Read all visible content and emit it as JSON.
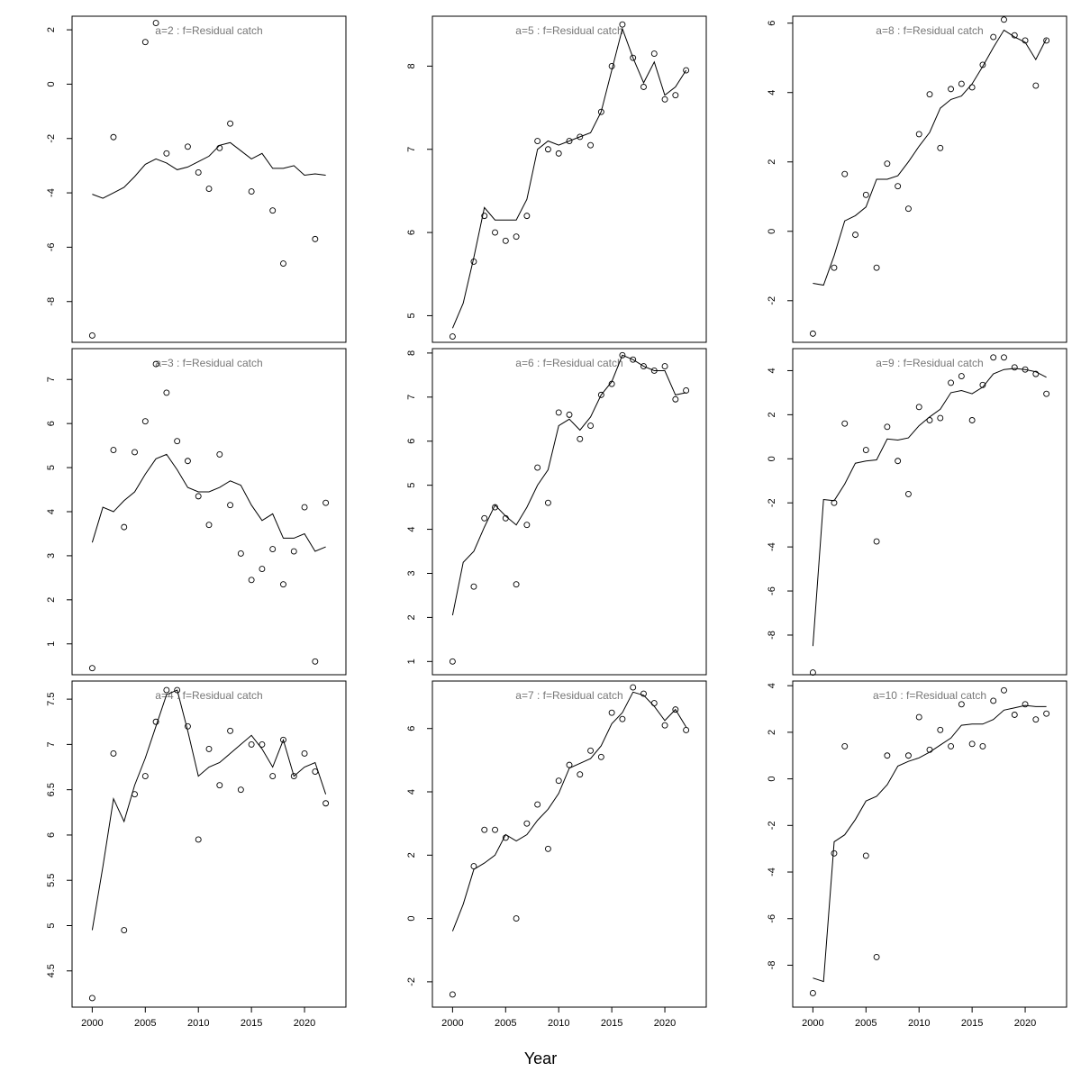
{
  "xlabel": "Year",
  "chart_data": [
    {
      "type": "line+scatter",
      "title": "a=2  :  f=Residual catch",
      "ylim": [
        -9.5,
        2.5
      ],
      "yticks": [
        -8,
        -6,
        -4,
        -2,
        0,
        2
      ],
      "xlim": [
        1998.1,
        2023.9
      ],
      "xticks": [],
      "years": [
        2000,
        2001,
        2002,
        2003,
        2004,
        2005,
        2006,
        2007,
        2008,
        2009,
        2010,
        2011,
        2012,
        2013,
        2014,
        2015,
        2016,
        2017,
        2018,
        2019,
        2020,
        2021,
        2022
      ],
      "observed": [
        -9.25,
        null,
        -1.95,
        null,
        null,
        1.55,
        2.25,
        -2.55,
        null,
        -2.3,
        -3.25,
        -3.85,
        -2.35,
        -1.45,
        null,
        -3.95,
        null,
        -4.65,
        -6.6,
        null,
        null,
        -5.7,
        null
      ],
      "fitted": [
        -4.05,
        -4.2,
        -4.0,
        -3.8,
        -3.4,
        -2.95,
        -2.75,
        -2.9,
        -3.15,
        -3.05,
        -2.85,
        -2.65,
        -2.25,
        -2.15,
        -2.45,
        -2.75,
        -2.55,
        -3.1,
        -3.1,
        -3.0,
        -3.35,
        -3.3,
        -3.35
      ]
    },
    {
      "type": "line+scatter",
      "title": "a=3  :  f=Residual catch",
      "ylim": [
        0.3,
        7.7
      ],
      "yticks": [
        1,
        2,
        3,
        4,
        5,
        6,
        7
      ],
      "xlim": [
        1998.1,
        2023.9
      ],
      "xticks": [],
      "years": [
        2000,
        2001,
        2002,
        2003,
        2004,
        2005,
        2006,
        2007,
        2008,
        2009,
        2010,
        2011,
        2012,
        2013,
        2014,
        2015,
        2016,
        2017,
        2018,
        2019,
        2020,
        2021,
        2022
      ],
      "observed": [
        0.45,
        null,
        5.4,
        3.65,
        5.35,
        6.05,
        7.35,
        6.7,
        5.6,
        5.15,
        4.35,
        3.7,
        5.3,
        4.15,
        3.05,
        2.45,
        2.7,
        3.15,
        2.35,
        3.1,
        4.1,
        0.6,
        4.2
      ],
      "fitted": [
        3.3,
        4.1,
        4.0,
        4.25,
        4.45,
        4.85,
        5.2,
        5.3,
        4.95,
        4.55,
        4.45,
        4.45,
        4.55,
        4.7,
        4.6,
        4.15,
        3.8,
        3.95,
        3.4,
        3.4,
        3.5,
        3.1,
        3.2
      ]
    },
    {
      "type": "line+scatter",
      "title": "a=4  :  f=Residual catch",
      "ylim": [
        4.1,
        7.7
      ],
      "yticks": [
        4.5,
        5.0,
        5.5,
        6.0,
        6.5,
        7.0,
        7.5
      ],
      "xlim": [
        1998.1,
        2023.9
      ],
      "xticks": [
        2000,
        2005,
        2010,
        2015,
        2020
      ],
      "years": [
        2000,
        2001,
        2002,
        2003,
        2004,
        2005,
        2006,
        2007,
        2008,
        2009,
        2010,
        2011,
        2012,
        2013,
        2014,
        2015,
        2016,
        2017,
        2018,
        2019,
        2020,
        2021,
        2022
      ],
      "observed": [
        4.2,
        null,
        6.9,
        4.95,
        6.45,
        6.65,
        7.25,
        7.6,
        7.6,
        7.2,
        5.95,
        6.95,
        6.55,
        7.15,
        6.5,
        7.0,
        7.0,
        6.65,
        7.05,
        6.65,
        6.9,
        6.7,
        6.35
      ],
      "fitted": [
        4.95,
        5.65,
        6.4,
        6.15,
        6.55,
        6.85,
        7.2,
        7.55,
        7.6,
        7.15,
        6.65,
        6.75,
        6.8,
        6.9,
        7.0,
        7.1,
        6.95,
        6.75,
        7.05,
        6.65,
        6.75,
        6.8,
        6.45
      ]
    },
    {
      "type": "line+scatter",
      "title": "a=5  :  f=Residual catch",
      "ylim": [
        4.68,
        8.6
      ],
      "yticks": [
        5,
        6,
        7,
        8
      ],
      "xlim": [
        1998.1,
        2023.9
      ],
      "xticks": [],
      "years": [
        2000,
        2001,
        2002,
        2003,
        2004,
        2005,
        2006,
        2007,
        2008,
        2009,
        2010,
        2011,
        2012,
        2013,
        2014,
        2015,
        2016,
        2017,
        2018,
        2019,
        2020,
        2021,
        2022
      ],
      "observed": [
        4.75,
        null,
        5.65,
        6.2,
        6.0,
        5.9,
        5.95,
        6.2,
        7.1,
        7.0,
        6.95,
        7.1,
        7.15,
        7.05,
        7.45,
        8.0,
        8.5,
        8.1,
        7.75,
        8.15,
        7.6,
        7.65,
        7.95
      ],
      "fitted": [
        4.85,
        5.15,
        5.7,
        6.3,
        6.15,
        6.15,
        6.15,
        6.4,
        7.0,
        7.1,
        7.05,
        7.1,
        7.15,
        7.2,
        7.45,
        7.95,
        8.45,
        8.1,
        7.8,
        8.05,
        7.65,
        7.75,
        7.95
      ]
    },
    {
      "type": "line+scatter",
      "title": "a=6  :  f=Residual catch",
      "ylim": [
        0.7,
        8.1
      ],
      "yticks": [
        1,
        2,
        3,
        4,
        5,
        6,
        7,
        8
      ],
      "xlim": [
        1998.1,
        2023.9
      ],
      "xticks": [],
      "years": [
        2000,
        2001,
        2002,
        2003,
        2004,
        2005,
        2006,
        2007,
        2008,
        2009,
        2010,
        2011,
        2012,
        2013,
        2014,
        2015,
        2016,
        2017,
        2018,
        2019,
        2020,
        2021,
        2022
      ],
      "observed": [
        1.0,
        null,
        2.7,
        4.25,
        4.5,
        4.25,
        2.75,
        4.1,
        5.4,
        4.6,
        6.65,
        6.6,
        6.05,
        6.35,
        7.05,
        7.3,
        7.95,
        7.85,
        7.7,
        7.6,
        7.7,
        6.95,
        7.15
      ],
      "fitted": [
        2.05,
        3.25,
        3.5,
        4.05,
        4.55,
        4.3,
        4.1,
        4.5,
        5.0,
        5.35,
        6.35,
        6.5,
        6.25,
        6.55,
        7.05,
        7.35,
        7.95,
        7.85,
        7.7,
        7.6,
        7.6,
        7.05,
        7.1
      ]
    },
    {
      "type": "line+scatter",
      "title": "a=7  :  f=Residual catch",
      "ylim": [
        -2.8,
        7.5
      ],
      "yticks": [
        -2,
        0,
        2,
        4,
        6
      ],
      "xlim": [
        1998.1,
        2023.9
      ],
      "xticks": [
        2000,
        2005,
        2010,
        2015,
        2020
      ],
      "years": [
        2000,
        2001,
        2002,
        2003,
        2004,
        2005,
        2006,
        2007,
        2008,
        2009,
        2010,
        2011,
        2012,
        2013,
        2014,
        2015,
        2016,
        2017,
        2018,
        2019,
        2020,
        2021,
        2022
      ],
      "observed": [
        -2.4,
        null,
        1.65,
        2.8,
        2.8,
        2.55,
        0.0,
        3.0,
        3.6,
        2.2,
        4.35,
        4.85,
        4.55,
        5.3,
        5.1,
        6.5,
        6.3,
        7.3,
        7.1,
        6.8,
        6.1,
        6.6,
        5.95
      ],
      "fitted": [
        -0.4,
        0.45,
        1.55,
        1.75,
        2.0,
        2.65,
        2.45,
        2.65,
        3.1,
        3.45,
        3.95,
        4.75,
        4.9,
        5.05,
        5.45,
        6.15,
        6.5,
        7.15,
        7.05,
        6.7,
        6.25,
        6.6,
        6.05
      ]
    },
    {
      "type": "line+scatter",
      "title": "a=8  :  f=Residual catch",
      "ylim": [
        -3.2,
        6.2
      ],
      "yticks": [
        -2,
        0,
        2,
        4,
        6
      ],
      "xlim": [
        1998.1,
        2023.9
      ],
      "xticks": [],
      "years": [
        2000,
        2001,
        2002,
        2003,
        2004,
        2005,
        2006,
        2007,
        2008,
        2009,
        2010,
        2011,
        2012,
        2013,
        2014,
        2015,
        2016,
        2017,
        2018,
        2019,
        2020,
        2021,
        2022
      ],
      "observed": [
        -2.95,
        null,
        -1.05,
        1.65,
        -0.1,
        1.05,
        -1.05,
        1.95,
        1.3,
        0.65,
        2.8,
        3.95,
        2.4,
        4.1,
        4.25,
        4.15,
        4.8,
        5.6,
        6.1,
        5.65,
        5.5,
        4.2,
        5.5
      ],
      "fitted": [
        -1.5,
        -1.55,
        -0.7,
        0.3,
        0.45,
        0.7,
        1.5,
        1.5,
        1.6,
        2.0,
        2.45,
        2.85,
        3.55,
        3.8,
        3.9,
        4.25,
        4.75,
        5.3,
        5.8,
        5.6,
        5.45,
        4.95,
        5.55
      ]
    },
    {
      "type": "line+scatter",
      "title": "a=9  :  f=Residual catch",
      "ylim": [
        -9.8,
        5.0
      ],
      "yticks": [
        -8,
        -6,
        -4,
        -2,
        0,
        2,
        4
      ],
      "xlim": [
        1998.1,
        2023.9
      ],
      "xticks": [],
      "years": [
        2000,
        2001,
        2002,
        2003,
        2004,
        2005,
        2006,
        2007,
        2008,
        2009,
        2010,
        2011,
        2012,
        2013,
        2014,
        2015,
        2016,
        2017,
        2018,
        2019,
        2020,
        2021,
        2022
      ],
      "observed": [
        -9.7,
        null,
        -2.0,
        1.6,
        null,
        0.4,
        -3.75,
        1.45,
        -0.1,
        -1.6,
        2.35,
        1.75,
        1.85,
        3.45,
        3.75,
        1.75,
        3.35,
        4.6,
        4.6,
        4.15,
        4.05,
        3.85,
        2.95
      ],
      "fitted": [
        -8.5,
        -1.85,
        -1.9,
        -1.15,
        -0.2,
        -0.1,
        -0.05,
        0.9,
        0.85,
        0.95,
        1.5,
        1.9,
        2.25,
        3.0,
        3.1,
        2.95,
        3.25,
        3.85,
        4.05,
        4.1,
        4.05,
        3.95,
        3.7
      ]
    },
    {
      "type": "line+scatter",
      "title": "a=10  :  f=Residual catch",
      "ylim": [
        -9.8,
        4.2
      ],
      "yticks": [
        -8,
        -6,
        -4,
        -2,
        0,
        2,
        4
      ],
      "xlim": [
        1998.1,
        2023.9
      ],
      "xticks": [
        2000,
        2005,
        2010,
        2015,
        2020
      ],
      "years": [
        2000,
        2001,
        2002,
        2003,
        2004,
        2005,
        2006,
        2007,
        2008,
        2009,
        2010,
        2011,
        2012,
        2013,
        2014,
        2015,
        2016,
        2017,
        2018,
        2019,
        2020,
        2021,
        2022
      ],
      "observed": [
        -9.2,
        null,
        -3.2,
        1.4,
        null,
        -3.3,
        -7.65,
        1.0,
        null,
        1.0,
        2.65,
        1.25,
        2.1,
        1.4,
        3.2,
        1.5,
        1.4,
        3.35,
        3.8,
        2.75,
        3.2,
        2.55,
        2.8
      ],
      "fitted": [
        -8.55,
        -8.7,
        -2.7,
        -2.4,
        -1.75,
        -0.95,
        -0.75,
        -0.25,
        0.55,
        0.75,
        0.9,
        1.15,
        1.45,
        1.75,
        2.3,
        2.35,
        2.35,
        2.55,
        2.95,
        3.05,
        3.15,
        3.1,
        3.1
      ]
    }
  ]
}
